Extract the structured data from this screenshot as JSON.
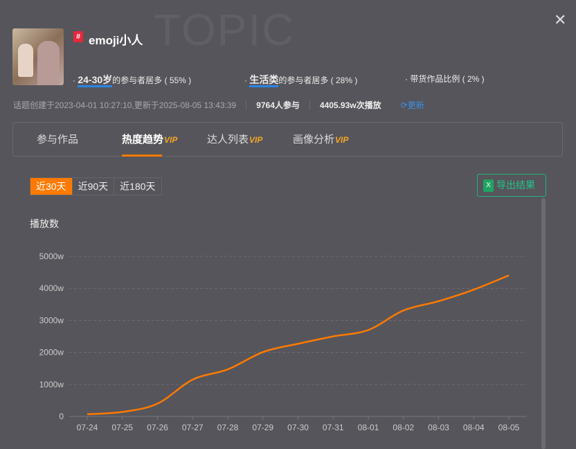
{
  "watermark": "TOPIC",
  "topic": {
    "tag": "#",
    "name": "emoji小人"
  },
  "stats": [
    {
      "highlight": "24-30岁",
      "text": "的参与者居多 ( 55% )"
    },
    {
      "highlight": "生活类",
      "text": "的参与者居多 ( 28% )"
    },
    {
      "highlight": "",
      "text": "带货作品比例 ( 2% )"
    }
  ],
  "meta": {
    "created": "话题创建于2023-04-01 10:27:10,更新于2025-08-05 13:43:39",
    "participants": "9764人参与",
    "plays": "4405.93w次播放",
    "refresh": "更新"
  },
  "tabs": [
    {
      "label": "参与作品",
      "vip": ""
    },
    {
      "label": "热度趋势",
      "vip": "VIP"
    },
    {
      "label": "达人列表",
      "vip": "VIP"
    },
    {
      "label": "画像分析",
      "vip": "VIP"
    }
  ],
  "range": [
    "近30天",
    "近90天",
    "近180天"
  ],
  "export_label": "导出结果",
  "colors": {
    "accent": "#ff7a00",
    "line": "#ff7a00",
    "export": "#22c48a"
  },
  "chart_data": {
    "type": "line",
    "title": "",
    "ylabel": "播放数",
    "xlabel": "",
    "categories": [
      "07-24",
      "07-25",
      "07-26",
      "07-27",
      "07-28",
      "07-29",
      "07-30",
      "07-31",
      "08-01",
      "08-02",
      "08-03",
      "08-04",
      "08-05"
    ],
    "series": [
      {
        "name": "播放数",
        "values": [
          70,
          140,
          400,
          1150,
          1470,
          2010,
          2270,
          2500,
          2700,
          3310,
          3600,
          3960,
          4406
        ]
      }
    ],
    "yticks": [
      {
        "v": 0,
        "label": "0"
      },
      {
        "v": 1000,
        "label": "1000w"
      },
      {
        "v": 2000,
        "label": "2000w"
      },
      {
        "v": 3000,
        "label": "3000w"
      },
      {
        "v": 4000,
        "label": "4000w"
      },
      {
        "v": 5000,
        "label": "5000w"
      }
    ],
    "ylim": [
      0,
      5000
    ],
    "grid": true
  }
}
